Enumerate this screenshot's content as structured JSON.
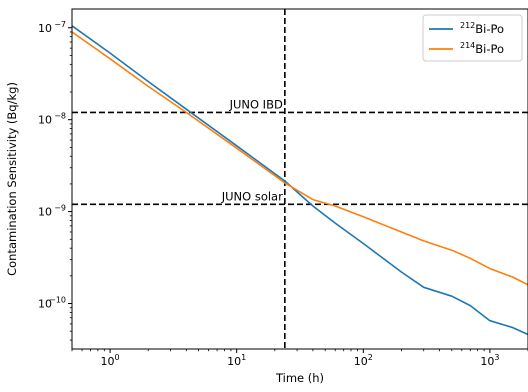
{
  "chart_data": {
    "type": "line",
    "xlabel": "Time (h)",
    "ylabel": "Contamination Sensitivity (Bq/kg)",
    "xscale": "log",
    "yscale": "log",
    "xlim": [
      0.5,
      2000
    ],
    "ylim": [
      3.2e-11,
      1.6e-07
    ],
    "grid": false,
    "legend": "top-right",
    "x_ticks": [
      {
        "value": 1,
        "base": "10",
        "exp": "0"
      },
      {
        "value": 10,
        "base": "10",
        "exp": "1"
      },
      {
        "value": 100,
        "base": "10",
        "exp": "2"
      },
      {
        "value": 1000,
        "base": "10",
        "exp": "3"
      }
    ],
    "y_ticks": [
      {
        "value": 1e-10,
        "base": "10",
        "exp": "−10"
      },
      {
        "value": 1e-09,
        "base": "10",
        "exp": "−9"
      },
      {
        "value": 1e-08,
        "base": "10",
        "exp": "−8"
      },
      {
        "value": 1e-07,
        "base": "10",
        "exp": "−7"
      }
    ],
    "series": [
      {
        "name": "Bi-Po",
        "name_sup": "212",
        "color": "#1f77b4",
        "x": [
          0.5,
          1,
          2,
          4,
          10,
          24,
          40,
          60,
          100,
          200,
          300,
          500,
          700,
          1000,
          1500,
          2000
        ],
        "y": [
          1.05e-07,
          5.3e-08,
          2.6e-08,
          1.3e-08,
          5.2e-09,
          2.15e-09,
          1.15e-09,
          7.5e-10,
          4.5e-10,
          2.2e-10,
          1.5e-10,
          1.2e-10,
          9.5e-11,
          6.5e-11,
          5.5e-11,
          4.6e-11
        ]
      },
      {
        "name": "Bi-Po",
        "name_sup": "214",
        "color": "#ff7f0e",
        "x": [
          0.5,
          1,
          2,
          4,
          10,
          24,
          40,
          60,
          100,
          200,
          300,
          500,
          700,
          1000,
          1500,
          2000
        ],
        "y": [
          9e-08,
          4.6e-08,
          2.3e-08,
          1.2e-08,
          4.9e-09,
          2.05e-09,
          1.35e-09,
          1.15e-09,
          8.8e-10,
          6e-10,
          4.8e-10,
          3.8e-10,
          3.1e-10,
          2.4e-10,
          1.95e-10,
          1.6e-10
        ]
      }
    ],
    "reference_lines": [
      {
        "axis": "y",
        "value": 1.2e-08,
        "label": "JUNO IBD",
        "style": "dashed"
      },
      {
        "axis": "y",
        "value": 1.2e-09,
        "label": "JUNO solar",
        "style": "dashed"
      },
      {
        "axis": "x",
        "value": 24,
        "label": "",
        "style": "dashed"
      }
    ]
  }
}
